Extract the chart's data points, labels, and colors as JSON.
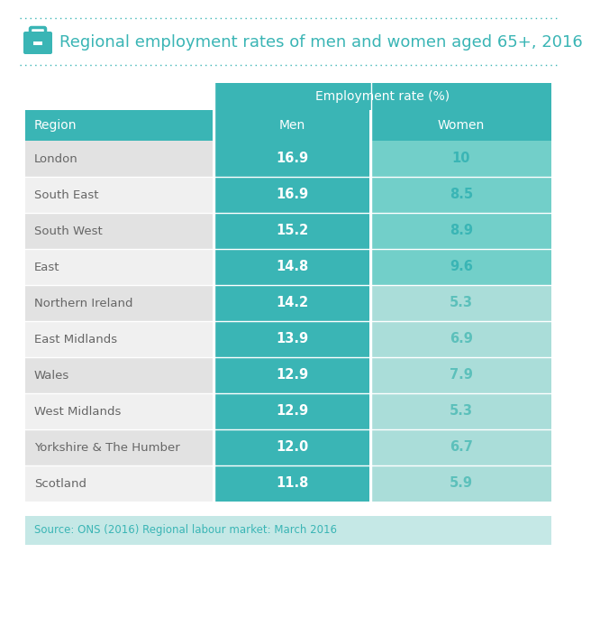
{
  "title": "Regional employment rates of men and women aged 65+, 2016",
  "regions": [
    "London",
    "South East",
    "South West",
    "East",
    "Northern Ireland",
    "East Midlands",
    "Wales",
    "West Midlands",
    "Yorkshire & The Humber",
    "Scotland"
  ],
  "men_values": [
    "16.9",
    "16.9",
    "15.2",
    "14.8",
    "14.2",
    "13.9",
    "12.9",
    "12.9",
    "12.0",
    "11.8"
  ],
  "women_values": [
    "10",
    "8.5",
    "8.9",
    "9.6",
    "5.3",
    "6.9",
    "7.9",
    "5.3",
    "6.7",
    "5.9"
  ],
  "header_bg": "#3ab5b5",
  "men_col_bg": "#3ab5b5",
  "women_col_bg_high": "#72cfc9",
  "women_col_bg_low": "#aaddd9",
  "row_bg_odd": "#e2e2e2",
  "row_bg_even": "#f0f0f0",
  "source_bg": "#c5e8e6",
  "source_text": "Source: ONS (2016) Regional labour market: March 2016",
  "teal_color": "#3ab5b5",
  "white_color": "#ffffff",
  "gray_text": "#666666",
  "outer_bg": "#ffffff",
  "dotted_border_color": "#3ab5b5",
  "women_text_high": "#3ab5b5",
  "women_text_low": "#5cc0bb",
  "header_label": "Employment rate (%)",
  "col1_label": "Region",
  "col2_label": "Men",
  "col3_label": "Women",
  "women_high_keys": [
    "10",
    "8.5",
    "8.9",
    "9.6"
  ],
  "women_low_keys": [
    "5.3",
    "6.9",
    "7.9",
    "6.7",
    "5.9"
  ]
}
